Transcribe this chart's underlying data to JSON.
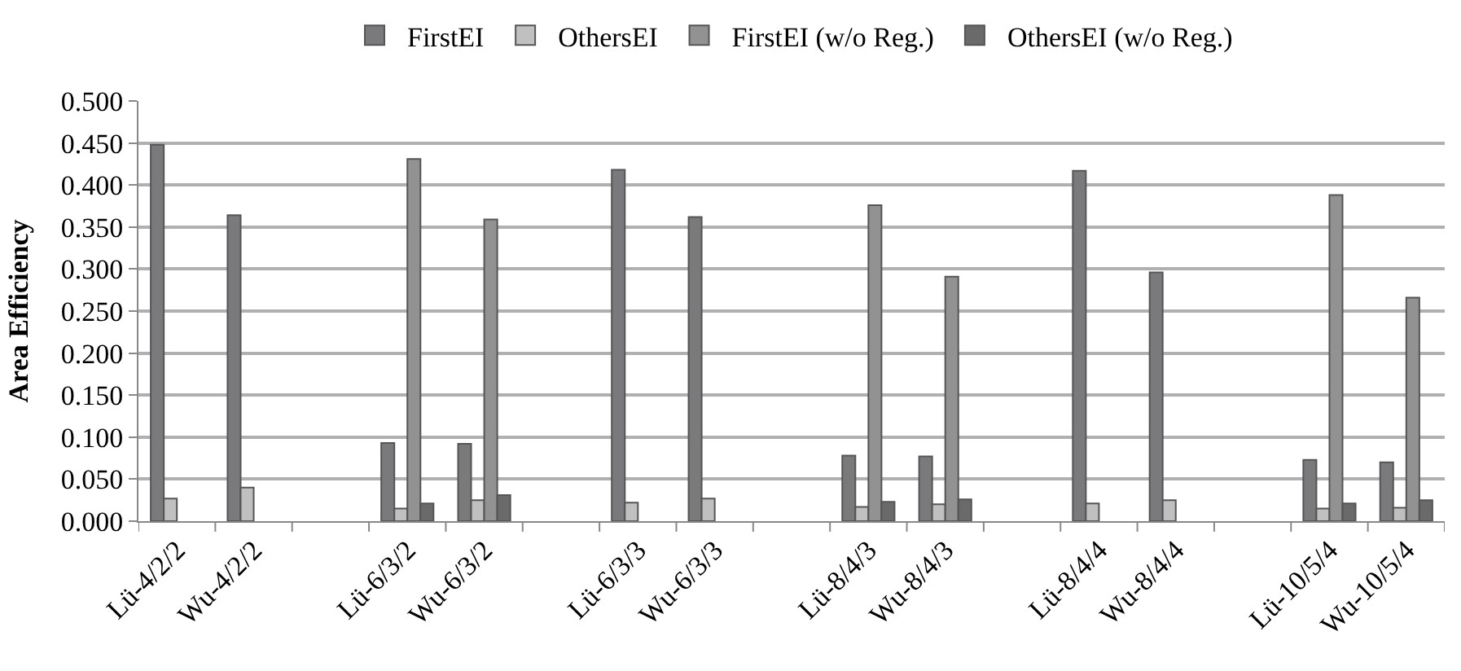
{
  "chart_data": {
    "type": "bar",
    "ylabel": "Area Efficiency",
    "categories": [
      "Lü-4/2/2",
      "Wu-4/2/2",
      null,
      "Lü-6/3/2",
      "Wu-6/3/2",
      null,
      "Lü-6/3/3",
      "Wu-6/3/3",
      null,
      "Lü-8/4/3",
      "Wu-8/4/3",
      null,
      "Lü-8/4/4",
      "Wu-8/4/4",
      null,
      "Lü-10/5/4",
      "Wu-10/5/4"
    ],
    "series": [
      {
        "name": "FirstEI",
        "color": "#7a7a7c",
        "values": [
          0.448,
          0.364,
          null,
          0.093,
          0.092,
          null,
          0.418,
          0.362,
          null,
          0.078,
          0.077,
          null,
          0.417,
          0.296,
          null,
          0.073,
          0.07
        ]
      },
      {
        "name": "OthersEI",
        "color": "#c0c0c0",
        "values": [
          0.027,
          0.04,
          null,
          0.015,
          0.025,
          null,
          0.022,
          0.027,
          null,
          0.017,
          0.02,
          null,
          0.021,
          0.025,
          null,
          0.015,
          0.016
        ]
      },
      {
        "name": "FirstEI (w/o Reg.)",
        "color": "#929292",
        "values": [
          null,
          null,
          null,
          0.431,
          0.359,
          null,
          null,
          null,
          null,
          0.376,
          0.291,
          null,
          null,
          null,
          null,
          0.388,
          0.266
        ]
      },
      {
        "name": "OthersEI (w/o Reg.)",
        "color": "#6a6a6a",
        "values": [
          null,
          null,
          null,
          0.021,
          0.031,
          null,
          null,
          null,
          null,
          0.023,
          0.026,
          null,
          null,
          null,
          null,
          0.021,
          0.025
        ]
      }
    ],
    "ylim": [
      0,
      0.5
    ],
    "yticks": [
      {
        "value": 0,
        "label": "0.000"
      },
      {
        "value": 0.05,
        "label": "0.050"
      },
      {
        "value": 0.1,
        "label": "0.100"
      },
      {
        "value": 0.15,
        "label": "0.150"
      },
      {
        "value": 0.2,
        "label": "0.200"
      },
      {
        "value": 0.25,
        "label": "0.250"
      },
      {
        "value": 0.3,
        "label": "0.300"
      },
      {
        "value": 0.35,
        "label": "0.350"
      },
      {
        "value": 0.4,
        "label": "0.400"
      },
      {
        "value": 0.45,
        "label": "0.450"
      },
      {
        "value": 0.5,
        "label": "0.500"
      }
    ],
    "grid": "y",
    "legend": "top"
  }
}
